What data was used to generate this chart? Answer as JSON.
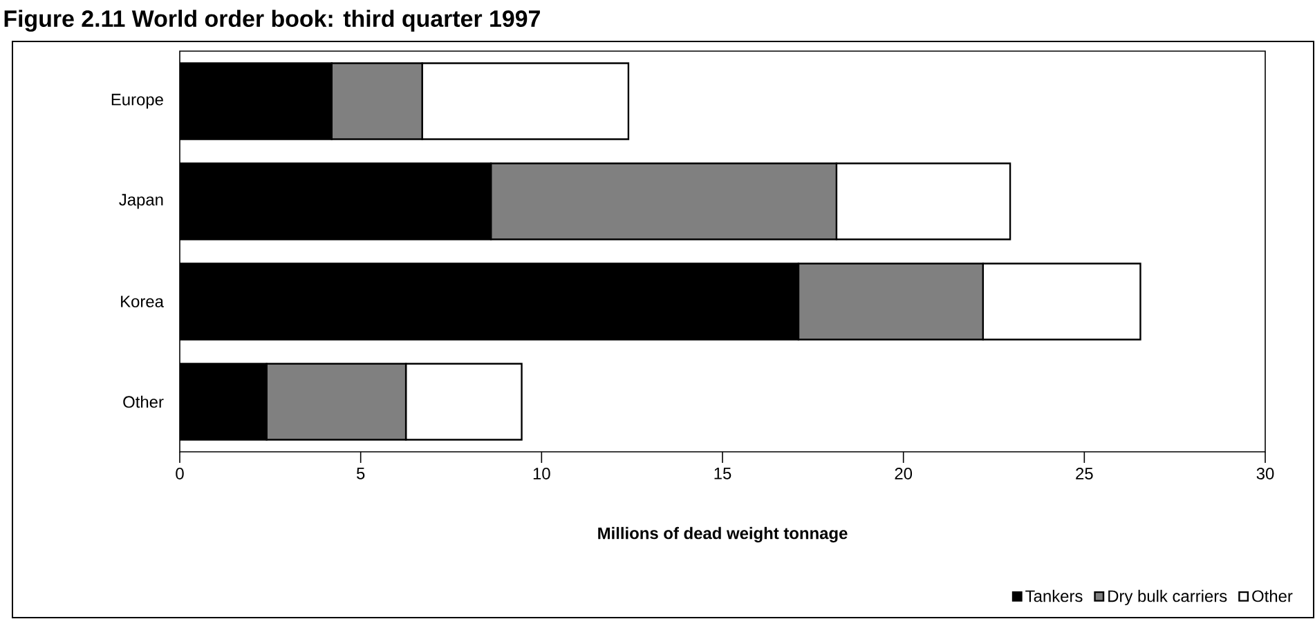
{
  "chart_data": {
    "type": "bar",
    "orientation": "horizontal",
    "stacked": true,
    "title": "Figure 2.11 World order book: third quarter 1997",
    "xlabel": "Millions of dead weight tonnage",
    "categories": [
      "Europe",
      "Japan",
      "Korea",
      "Other"
    ],
    "series": [
      {
        "name": "Tankers",
        "color": "#000000",
        "values": [
          4.2,
          8.6,
          17.1,
          2.4
        ]
      },
      {
        "name": "Dry bulk carriers",
        "color": "#808080",
        "values": [
          2.5,
          9.55,
          5.1,
          3.85
        ]
      },
      {
        "name": "Other",
        "color": "#ffffff",
        "values": [
          5.7,
          4.8,
          4.35,
          3.2
        ]
      }
    ],
    "xlim": [
      0,
      30
    ],
    "xticks": [
      0,
      5,
      10,
      15,
      20,
      25,
      30
    ],
    "legend": "bottom right"
  }
}
